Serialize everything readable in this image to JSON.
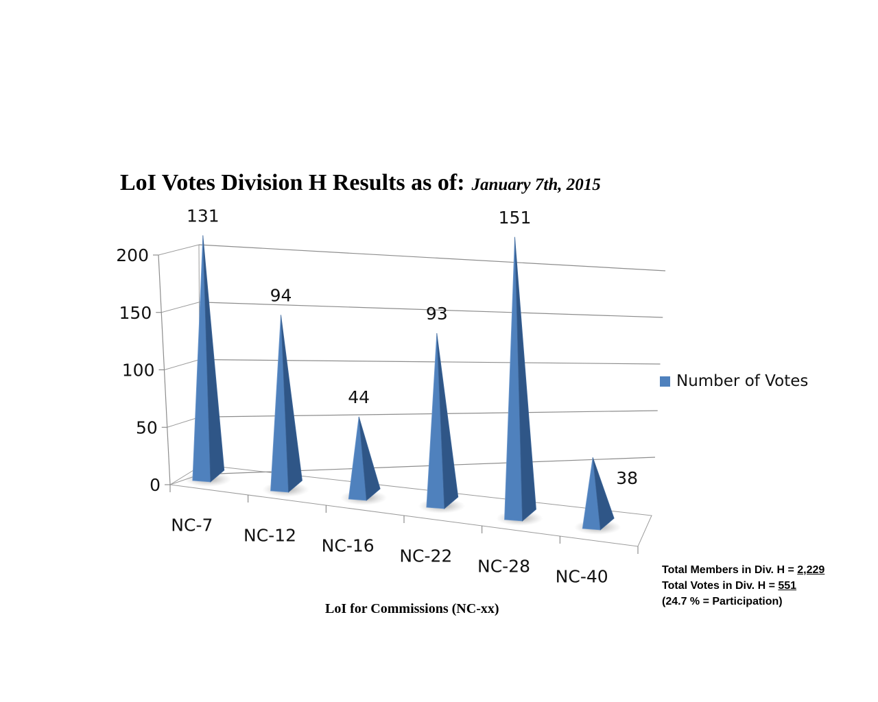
{
  "chart_data": {
    "type": "bar",
    "shape": "3d-pyramid",
    "title": "LoI Votes Division H Results as of:",
    "title_date": "January 7th, 2015",
    "xlabel": "LoI for Commissions (NC-xx)",
    "ylabel": "",
    "ylim": [
      0,
      200
    ],
    "yticks": [
      0,
      50,
      100,
      150,
      200
    ],
    "grid": true,
    "legend_position": "right",
    "categories": [
      "NC-7",
      "NC-12",
      "NC-16",
      "NC-22",
      "NC-28",
      "NC-40"
    ],
    "series": [
      {
        "name": "Number of Votes",
        "values": [
          131,
          94,
          44,
          93,
          151,
          38
        ],
        "color": "#4f81bd"
      }
    ]
  },
  "notes": {
    "members_prefix": "Total Members in Div. H = ",
    "members_value": "2,229",
    "votes_prefix": "Total Votes in Div. H = ",
    "votes_value": "551",
    "participation": "(24.7 % = Participation)"
  }
}
